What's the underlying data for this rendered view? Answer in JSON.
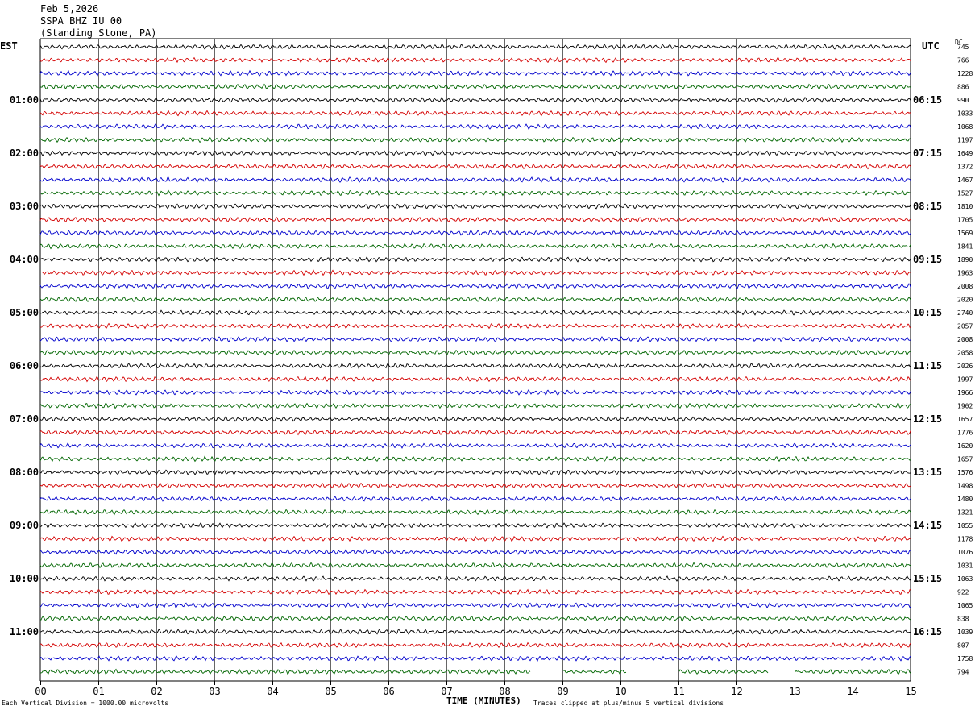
{
  "header": {
    "date": "Feb 5,2026",
    "station": "SSPA BHZ IU 00",
    "location": "(Standing Stone, PA)"
  },
  "chart_data": {
    "type": "line",
    "title": "SSPA BHZ IU 00",
    "left_axis_label": "EST",
    "right_axis_label": "UTC",
    "dc_label": "DC",
    "xlabel": "TIME (MINUTES)",
    "xlim": [
      0,
      15
    ],
    "x_ticks": [
      "00",
      "01",
      "02",
      "03",
      "04",
      "05",
      "06",
      "07",
      "08",
      "09",
      "10",
      "11",
      "12",
      "13",
      "14",
      "15"
    ],
    "grid": true,
    "trace_colors": [
      "#000000",
      "#d40000",
      "#0000cc",
      "#006600"
    ],
    "rows_per_hour": 4,
    "est_labels": [
      "01:00",
      "02:00",
      "03:00",
      "04:00",
      "05:00",
      "06:00",
      "07:00",
      "08:00",
      "09:00",
      "10:00",
      "11:00"
    ],
    "utc_labels": [
      "06:15",
      "07:15",
      "08:15",
      "09:15",
      "10:15",
      "11:15",
      "12:15",
      "13:15",
      "14:15",
      "15:15",
      "16:15"
    ],
    "dc_offsets": [
      "745",
      "766",
      "1228",
      "886",
      "990",
      "1033",
      "1068",
      "1197",
      "1649",
      "1372",
      "1467",
      "1527",
      "1810",
      "1705",
      "1569",
      "1841",
      "1890",
      "1963",
      "2008",
      "2020",
      "2740",
      "2057",
      "2008",
      "2058",
      "2026",
      "1997",
      "1966",
      "1902",
      "1657",
      "1776",
      "1620",
      "1657",
      "1576",
      "1498",
      "1480",
      "1321",
      "1055",
      "1178",
      "1076",
      "1031",
      "1063",
      "922",
      "1065",
      "838",
      "1039",
      "807",
      "1758",
      "794"
    ],
    "gap_minutes_last_row": [
      [
        8.45,
        9.0
      ],
      [
        10.1,
        11.0
      ],
      [
        12.55,
        13.0
      ]
    ],
    "vertical_division": "Each Vertical Division = 1000.00 microvolts",
    "clip_note": "Traces clipped at plus/minus 5 vertical divisions"
  },
  "footer": {
    "scale_note": "Each Vertical Division = 1000.00 microvolts",
    "xlabel": "TIME (MINUTES)",
    "clip_note": "Traces clipped at plus/minus 5 vertical divisions"
  }
}
